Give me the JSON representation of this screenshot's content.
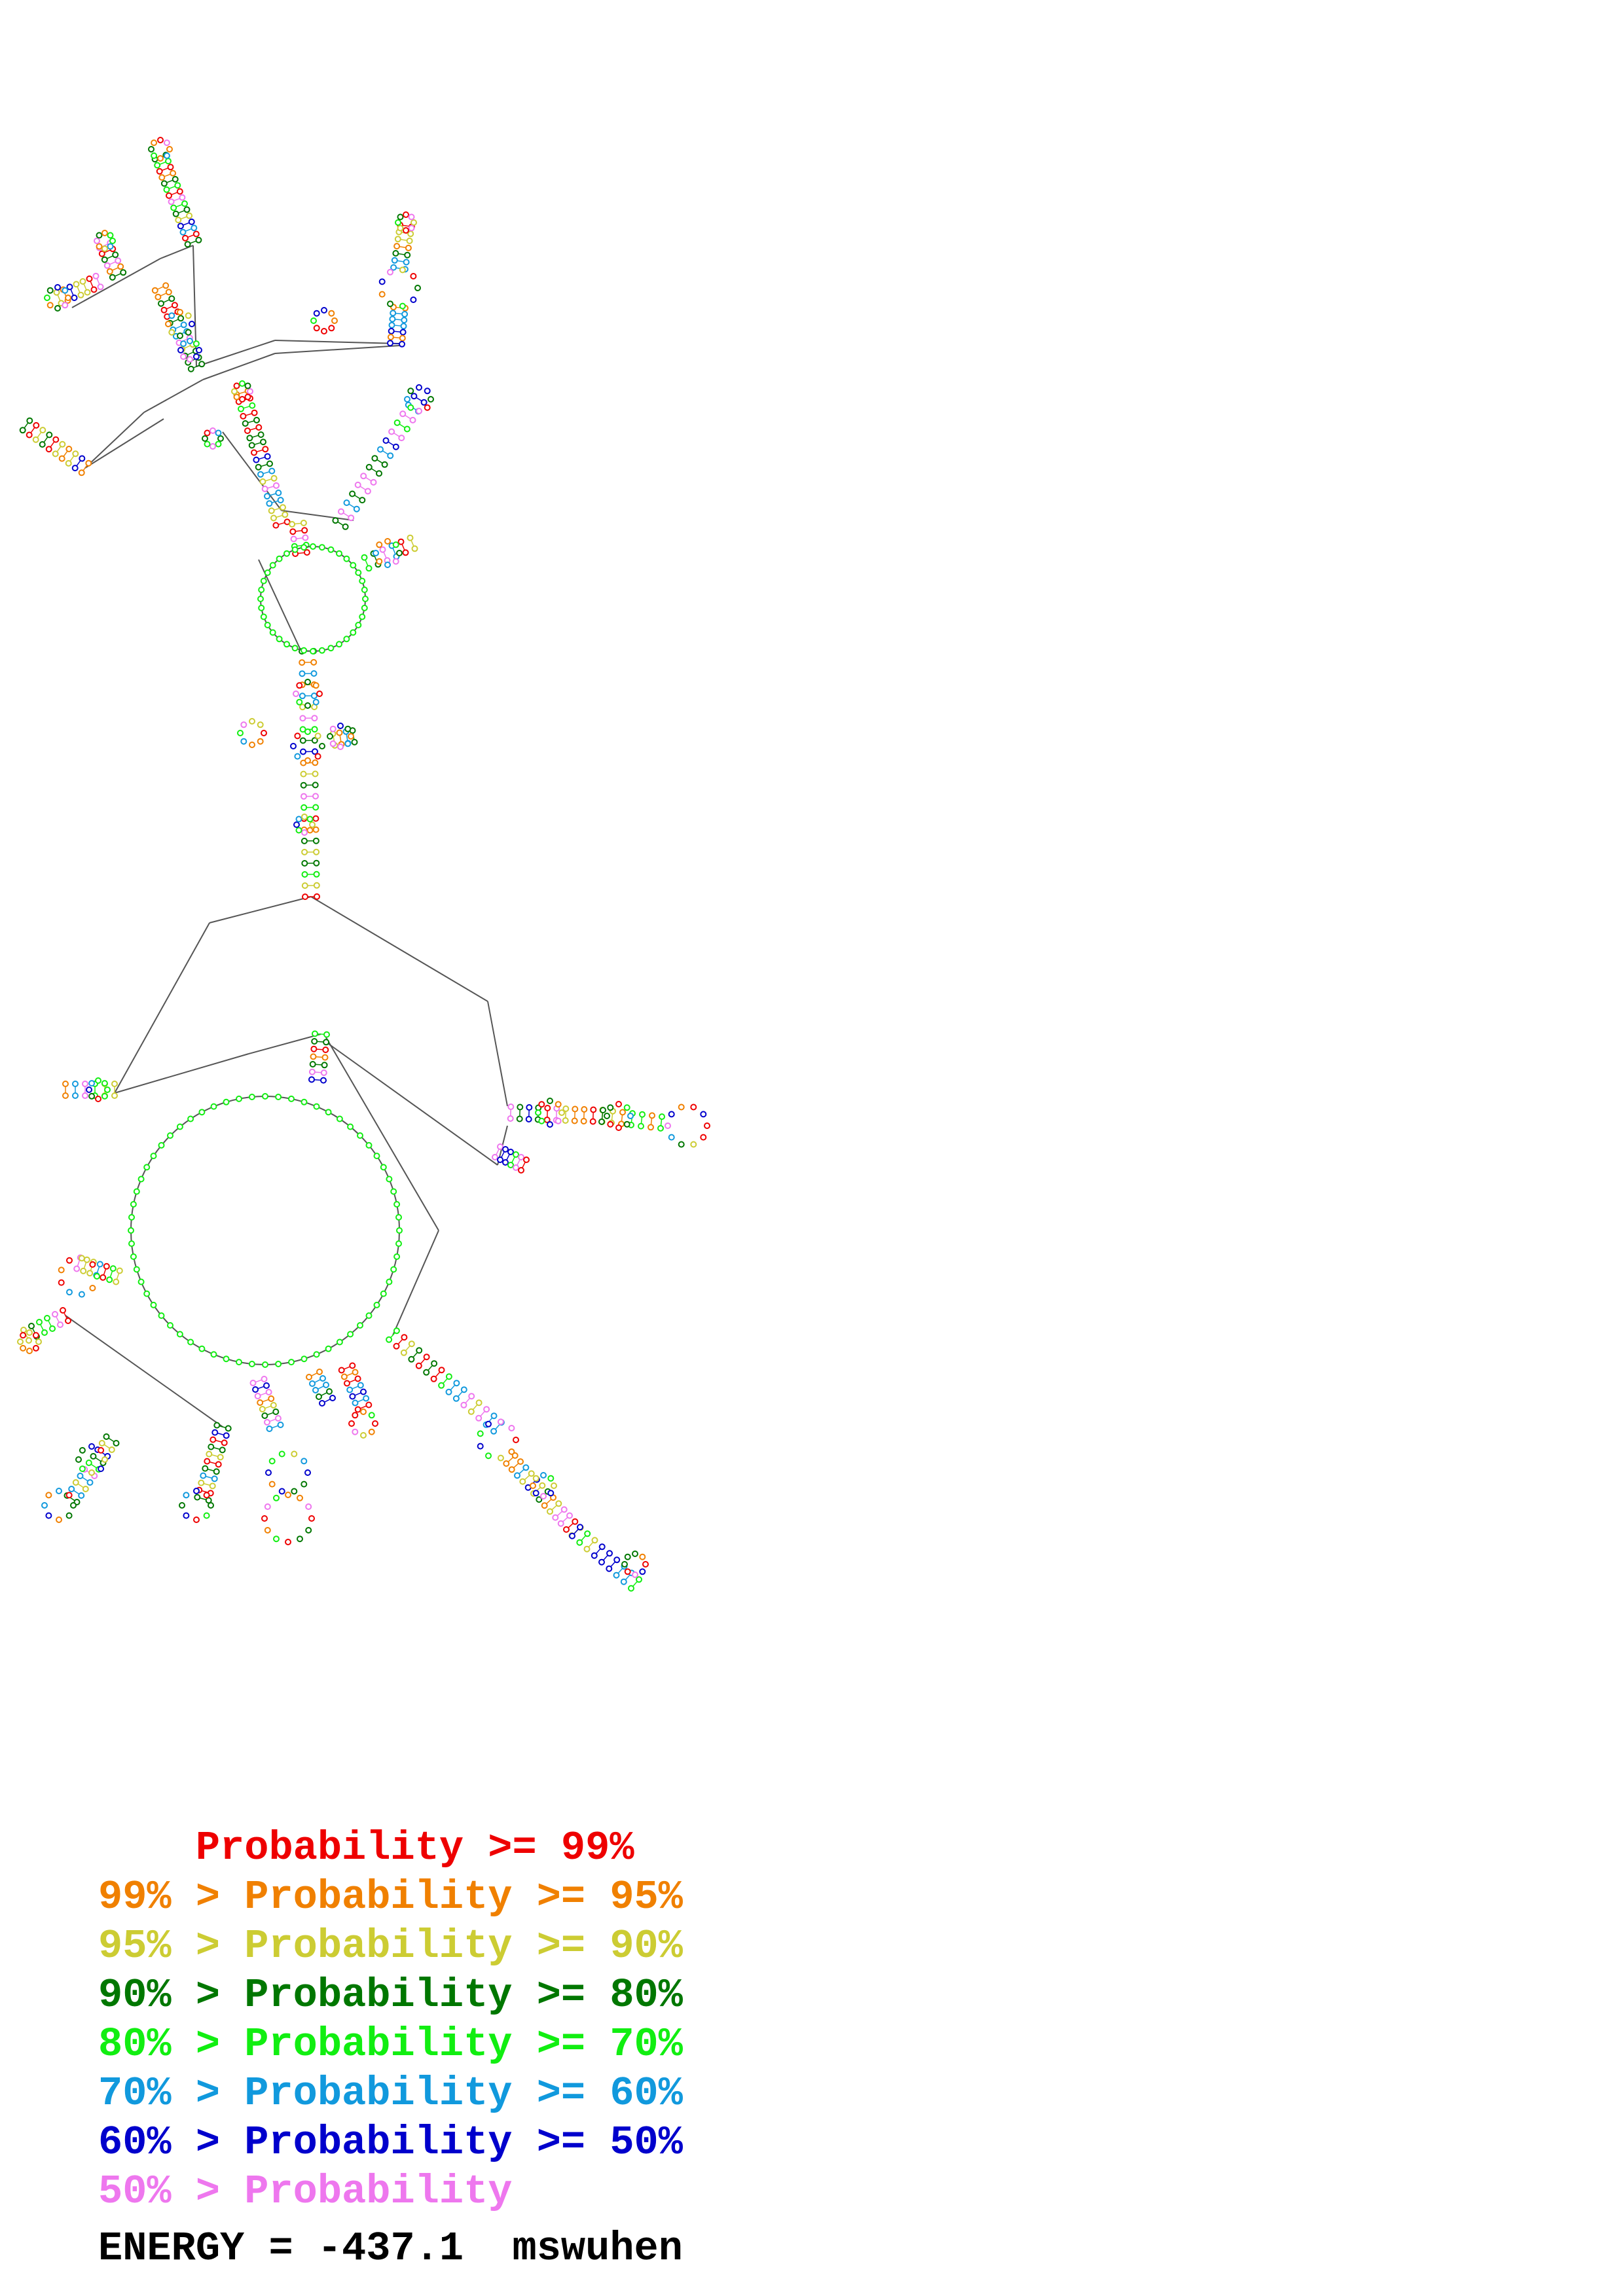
{
  "structure": {
    "colors": {
      "backbone": "#555555",
      "node_stroke": "#333333",
      "p99": "#ee0000",
      "p95": "#f08000",
      "p90": "#cccc33",
      "p80": "#007700",
      "p70": "#11ee11",
      "p60": "#1199dd",
      "p50": "#0000cc",
      "plow": "#ee77ee"
    }
  },
  "legend": {
    "rows": [
      {
        "text": "    Probability >= 99%",
        "color": "#ee0000"
      },
      {
        "text": "99% > Probability >= 95%",
        "color": "#f08000"
      },
      {
        "text": "95% > Probability >= 90%",
        "color": "#cccc33"
      },
      {
        "text": "90% > Probability >= 80%",
        "color": "#007700"
      },
      {
        "text": "80% > Probability >= 70%",
        "color": "#11ee11"
      },
      {
        "text": "70% > Probability >= 60%",
        "color": "#1199dd"
      },
      {
        "text": "60% > Probability >= 50%",
        "color": "#0000cc"
      },
      {
        "text": "50% > Probability",
        "color": "#ee77ee"
      }
    ]
  },
  "energy": {
    "text": "ENERGY = -437.1  mswuhen"
  }
}
